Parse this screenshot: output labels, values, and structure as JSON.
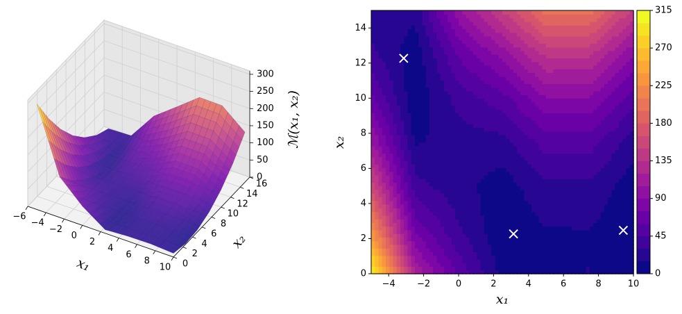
{
  "chart_data": [
    {
      "type": "surface",
      "xlabel": "x₁",
      "ylabel": "x₂",
      "zlabel": "ℳ(x₁, x₂)",
      "x": [
        -5,
        -2.5,
        0,
        2.5,
        5,
        7.5,
        10
      ],
      "y": [
        0,
        2.5,
        5,
        7.5,
        10,
        12.5,
        15
      ],
      "z": [
        [
          308.1,
          118.6,
          55.6,
          10.3,
          14.3,
          15.1,
          10.9
        ],
        [
          228.4,
          71.0,
          31.9,
          2.4,
          14.2,
          14.7,
          2.2
        ],
        [
          161.3,
          35.8,
          20.6,
          7.0,
          26.6,
          26.8,
          5.9
        ],
        [
          106.6,
          13.1,
          21.9,
          24.1,
          51.5,
          51.4,
          22.1
        ],
        [
          64.4,
          2.9,
          35.6,
          53.7,
          88.9,
          88.5,
          50.9
        ],
        [
          34.7,
          5.2,
          61.9,
          95.8,
          138.8,
          138.1,
          92.1
        ],
        [
          17.5,
          20.1,
          100.6,
          150.4,
          201.2,
          200.2,
          145.8
        ]
      ],
      "xlim": [
        -6,
        10
      ],
      "ylim": [
        0,
        16
      ],
      "zlim": [
        0,
        310
      ],
      "xticks": [
        {
          "value": -6,
          "label": "−6"
        },
        {
          "value": -4,
          "label": "−4"
        },
        {
          "value": -2,
          "label": "−2"
        },
        0,
        2,
        4,
        6,
        8,
        10
      ],
      "yticks": [
        0,
        2,
        4,
        6,
        8,
        10,
        12,
        14,
        16
      ],
      "zticks": [
        0,
        50,
        100,
        150,
        200,
        250,
        300
      ],
      "colormap": [
        "#0d0887",
        "#46039f",
        "#7201a8",
        "#9c179e",
        "#bd3786",
        "#d8576b",
        "#ed7953",
        "#fb9f3a",
        "#fdca26",
        "#f0f921"
      ]
    },
    {
      "type": "contour",
      "xlabel": "x₁",
      "ylabel": "x₂",
      "x": [
        -5,
        -2.5,
        0,
        2.5,
        5,
        7.5,
        10
      ],
      "y": [
        0,
        2.5,
        5,
        7.5,
        10,
        12.5,
        15
      ],
      "z": [
        [
          308.1,
          118.6,
          55.6,
          10.3,
          14.3,
          15.1,
          10.9
        ],
        [
          228.4,
          71.0,
          31.9,
          2.4,
          14.2,
          14.7,
          2.2
        ],
        [
          161.3,
          35.8,
          20.6,
          7.0,
          26.6,
          26.8,
          5.9
        ],
        [
          106.6,
          13.1,
          21.9,
          24.1,
          51.5,
          51.4,
          22.1
        ],
        [
          64.4,
          2.9,
          35.6,
          53.7,
          88.9,
          88.5,
          50.9
        ],
        [
          34.7,
          5.2,
          61.9,
          95.8,
          138.8,
          138.1,
          92.1
        ],
        [
          17.5,
          20.1,
          100.6,
          150.4,
          201.2,
          200.2,
          145.8
        ]
      ],
      "xlim": [
        -5,
        10
      ],
      "ylim": [
        0,
        15
      ],
      "xticks": [
        {
          "value": -4,
          "label": "−4"
        },
        {
          "value": -2,
          "label": "−2"
        },
        0,
        2,
        4,
        6,
        8,
        10
      ],
      "yticks": [
        0,
        2,
        4,
        6,
        8,
        10,
        12,
        14
      ],
      "levels": [
        0,
        15,
        30,
        45,
        60,
        75,
        90,
        105,
        120,
        135,
        150,
        165,
        180,
        195,
        210,
        225,
        240,
        255,
        270,
        285,
        300,
        315
      ],
      "colorbar_ticks": [
        0,
        45,
        90,
        135,
        180,
        225,
        270,
        315
      ],
      "colormap": [
        "#0d0887",
        "#46039f",
        "#7201a8",
        "#9c179e",
        "#bd3786",
        "#d8576b",
        "#ed7953",
        "#fb9f3a",
        "#fdca26",
        "#f0f921"
      ],
      "markers": {
        "x": [
          -3.14,
          3.14,
          9.42
        ],
        "y": [
          12.27,
          2.27,
          2.47
        ],
        "color": "#ffffff"
      }
    }
  ]
}
